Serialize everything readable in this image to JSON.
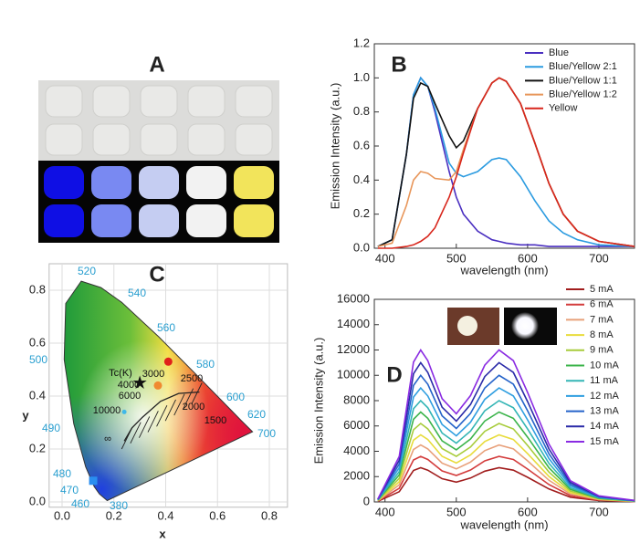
{
  "panel_a": {
    "label": "A"
  },
  "chart_data": [
    {
      "type": "line",
      "label": "B",
      "xlabel": "wavelength (nm)",
      "ylabel": "Emission Intensity (a.u.)",
      "legend": "upper right",
      "x": [
        390,
        410,
        430,
        440,
        450,
        460,
        470,
        490,
        500,
        510,
        530,
        550,
        560,
        570,
        590,
        610,
        630,
        650,
        670,
        700,
        750
      ],
      "xlim": [
        385,
        750
      ],
      "xticks": [
        400,
        500,
        600,
        700
      ],
      "ylim": [
        0,
        1.2
      ],
      "yticks": [
        {
          "value": 0,
          "label": "0.0"
        },
        0.2,
        0.4,
        0.6,
        0.8,
        {
          "value": 1,
          "label": "1.0"
        },
        1.2
      ],
      "series": [
        {
          "name": "Blue",
          "color": "#4a2fc0",
          "values": [
            0.01,
            0.05,
            0.55,
            0.9,
            1.0,
            0.95,
            0.8,
            0.45,
            0.3,
            0.2,
            0.1,
            0.05,
            0.04,
            0.03,
            0.02,
            0.02,
            0.01,
            0.01,
            0.01,
            0.01,
            0.01
          ]
        },
        {
          "name": "Blue/Yellow 2:1",
          "color": "#2b9be0",
          "values": [
            0.01,
            0.05,
            0.55,
            0.9,
            1.0,
            0.95,
            0.82,
            0.5,
            0.44,
            0.42,
            0.45,
            0.52,
            0.53,
            0.52,
            0.42,
            0.28,
            0.16,
            0.09,
            0.05,
            0.02,
            0.01
          ]
        },
        {
          "name": "Blue/Yellow 1:1",
          "color": "#111111",
          "values": [
            0.01,
            0.05,
            0.55,
            0.88,
            0.97,
            0.95,
            0.85,
            0.66,
            0.59,
            0.63,
            0.82,
            0.97,
            1.0,
            0.98,
            0.85,
            0.62,
            0.38,
            0.2,
            0.1,
            0.04,
            0.01
          ]
        },
        {
          "name": "Blue/Yellow 1:2",
          "color": "#e8965a",
          "values": [
            0.01,
            0.03,
            0.25,
            0.4,
            0.45,
            0.44,
            0.41,
            0.4,
            0.45,
            0.58,
            0.82,
            0.97,
            1.0,
            0.98,
            0.85,
            0.62,
            0.38,
            0.2,
            0.1,
            0.04,
            0.01
          ]
        },
        {
          "name": "Yellow",
          "color": "#d8261c",
          "values": [
            0,
            0,
            0.01,
            0.02,
            0.04,
            0.07,
            0.12,
            0.3,
            0.42,
            0.56,
            0.82,
            0.97,
            1.0,
            0.98,
            0.85,
            0.62,
            0.38,
            0.2,
            0.1,
            0.04,
            0.01
          ]
        }
      ]
    },
    {
      "type": "line",
      "label": "D",
      "xlabel": "wavelength (nm)",
      "ylabel": "Emission Intensity (a.u.)",
      "legend": "upper right",
      "x": [
        390,
        420,
        440,
        450,
        460,
        480,
        500,
        520,
        540,
        560,
        580,
        600,
        630,
        660,
        700,
        750
      ],
      "xlim": [
        385,
        750
      ],
      "xticks": [
        400,
        500,
        600,
        700
      ],
      "ylim": [
        0,
        16000
      ],
      "yticks": [
        0,
        2000,
        4000,
        6000,
        8000,
        10000,
        12000,
        14000,
        16000
      ],
      "series": [
        {
          "name": "5 mA",
          "color": "#a11d1d",
          "values": [
            54,
            810,
            2484,
            2700,
            2511,
            1836,
            1566,
            1890,
            2430,
            2700,
            2511,
            1944,
            1026,
            378,
            108,
            27
          ]
        },
        {
          "name": "6 mA",
          "color": "#d33c3c",
          "values": [
            72,
            1080,
            3312,
            3600,
            3348,
            2448,
            2088,
            2520,
            3240,
            3600,
            3348,
            2592,
            1368,
            504,
            144,
            36
          ]
        },
        {
          "name": "7 mA",
          "color": "#e8a07a",
          "values": [
            90,
            1350,
            4140,
            4500,
            4185,
            3060,
            2610,
            3150,
            4050,
            4500,
            4185,
            3240,
            1710,
            630,
            180,
            45
          ]
        },
        {
          "name": "8 mA",
          "color": "#e8dc3c",
          "values": [
            106,
            1590,
            4876,
            5300,
            4929,
            3604,
            3074,
            3710,
            4770,
            5300,
            4929,
            3816,
            2014,
            742,
            212,
            53
          ]
        },
        {
          "name": "9 mA",
          "color": "#a8cc3c",
          "values": [
            124,
            1860,
            5704,
            6200,
            5766,
            4216,
            3596,
            4340,
            5580,
            6200,
            5766,
            4464,
            2356,
            868,
            248,
            62
          ]
        },
        {
          "name": "10 mA",
          "color": "#3cb44b",
          "values": [
            142,
            2130,
            6532,
            7100,
            6603,
            4828,
            4118,
            4970,
            6390,
            7100,
            6603,
            5112,
            2698,
            994,
            284,
            71
          ]
        },
        {
          "name": "11 mA",
          "color": "#33b5b5",
          "values": [
            160,
            2400,
            7360,
            8000,
            7440,
            5440,
            4640,
            5600,
            7200,
            8000,
            7440,
            5760,
            3040,
            1120,
            320,
            80
          ]
        },
        {
          "name": "12 mA",
          "color": "#2f9ee0",
          "values": [
            180,
            2700,
            8280,
            9000,
            8370,
            6120,
            5220,
            6300,
            8100,
            9000,
            8370,
            6480,
            3420,
            1260,
            360,
            90
          ]
        },
        {
          "name": "13 mA",
          "color": "#2563c9",
          "values": [
            200,
            3000,
            9200,
            10000,
            9300,
            6800,
            5800,
            7000,
            9000,
            10000,
            9300,
            7200,
            3800,
            1400,
            400,
            100
          ]
        },
        {
          "name": "14 mA",
          "color": "#2a2aa8",
          "values": [
            220,
            3300,
            10120,
            11000,
            10230,
            7480,
            6380,
            7700,
            9900,
            11000,
            10230,
            7920,
            4180,
            1540,
            440,
            110
          ]
        },
        {
          "name": "15 mA",
          "color": "#8a2be2",
          "values": [
            240,
            3600,
            11040,
            12000,
            11160,
            8160,
            6960,
            8400,
            10800,
            12000,
            11160,
            8640,
            4560,
            1680,
            480,
            120
          ]
        }
      ]
    },
    {
      "type": "cie",
      "label": "C",
      "xlabel": "x",
      "ylabel": "y",
      "xlim": [
        -0.05,
        0.87
      ],
      "ylim": [
        -0.02,
        0.9
      ],
      "xticks": [
        {
          "value": 0,
          "label": "0.0"
        },
        0.2,
        0.4,
        0.6,
        0.8
      ],
      "yticks": [
        {
          "value": 0,
          "label": "0.0"
        },
        0.2,
        0.4,
        0.6,
        0.8
      ],
      "grid": true,
      "wavelength_labels": [
        "520",
        "540",
        "560",
        "580",
        "600",
        "620",
        "700",
        "500",
        "490",
        "480",
        "470",
        "460",
        "380"
      ],
      "temperature_title": "Tc(K)",
      "temperature_labels": [
        "10000",
        "6000",
        "4000",
        "3000",
        "2500",
        "2000",
        "1500",
        "∞"
      ],
      "points": [
        {
          "marker": "circle",
          "color": "#e0201a",
          "x": 0.41,
          "y": 0.53
        },
        {
          "marker": "circle",
          "color": "#f08a30",
          "x": 0.37,
          "y": 0.44
        },
        {
          "marker": "star",
          "color": "#111111",
          "x": 0.3,
          "y": 0.45
        },
        {
          "marker": "circle",
          "color": "#40b8e8",
          "x": 0.24,
          "y": 0.34
        },
        {
          "marker": "square",
          "color": "#2a8ef0",
          "x": 0.12,
          "y": 0.08
        }
      ]
    }
  ]
}
